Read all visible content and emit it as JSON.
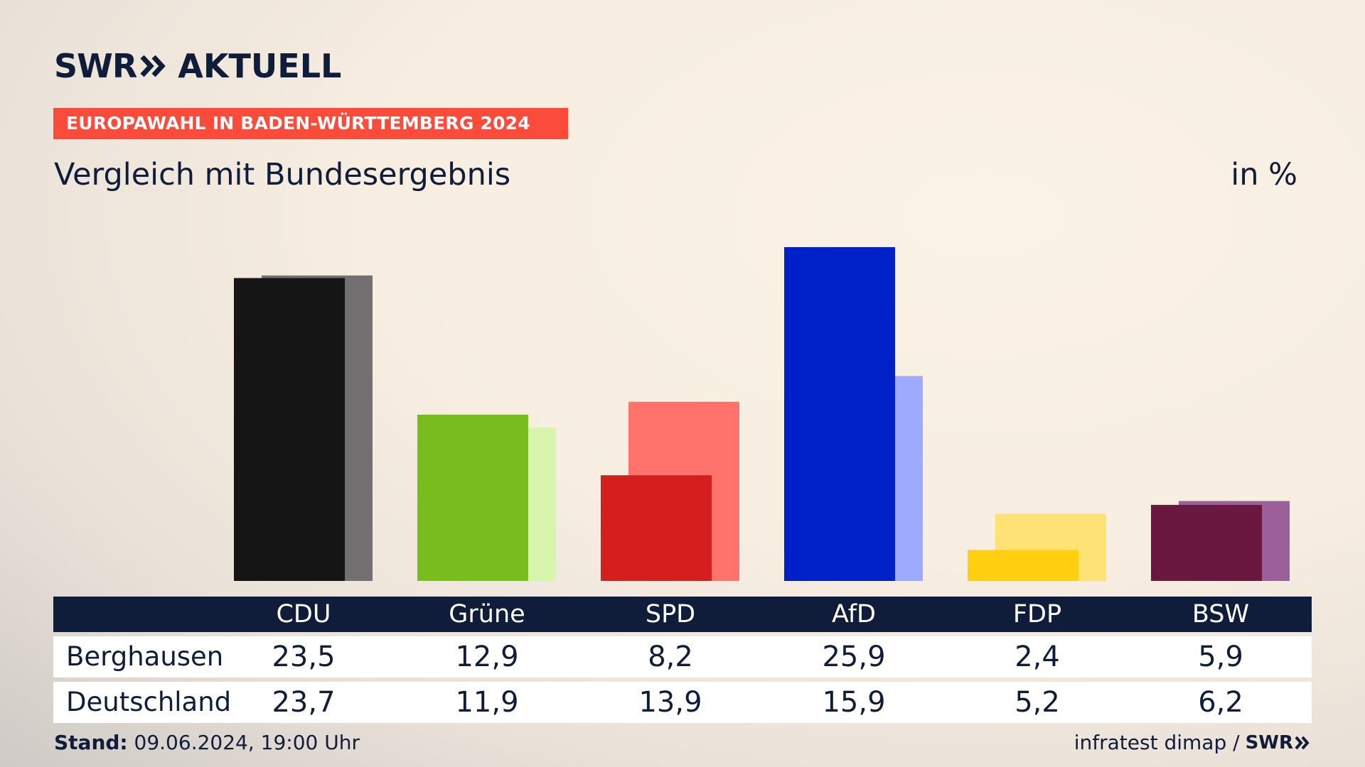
{
  "header": {
    "logo_swr": "SWR",
    "logo_aktuell": "AKTUELL",
    "banner": "EUROPAWAHL IN BADEN-WÜRTTEMBERG 2024",
    "subtitle": "Vergleich mit Bundesergebnis",
    "unit": "in %"
  },
  "chart_data": {
    "type": "bar",
    "categories": [
      "CDU",
      "Grüne",
      "SPD",
      "AfD",
      "FDP",
      "BSW"
    ],
    "series": [
      {
        "name": "Berghausen",
        "values": [
          23.5,
          12.9,
          8.2,
          25.9,
          2.4,
          5.9
        ]
      },
      {
        "name": "Deutschland",
        "values": [
          23.7,
          11.9,
          13.9,
          15.9,
          5.2,
          6.2
        ]
      }
    ],
    "values_text": {
      "Berghausen": [
        "23,5",
        "12,9",
        "8,2",
        "25,9",
        "2,4",
        "5,9"
      ],
      "Deutschland": [
        "23,7",
        "11,9",
        "13,9",
        "15,9",
        "5,2",
        "6,2"
      ]
    },
    "colors_primary": [
      "#151515",
      "#78bc1e",
      "#d51f1f",
      "#0020c8",
      "#ffcf10",
      "#6b1840"
    ],
    "colors_secondary": [
      "#727070",
      "#d8f5ad",
      "#ff736c",
      "#9eaafd",
      "#ffe276",
      "#9b5f99"
    ],
    "ylim": [
      0,
      27
    ],
    "grid": false,
    "legend": "table-below"
  },
  "footer": {
    "stand_label": "Stand:",
    "stand_value": "09.06.2024, 19:00 Uhr",
    "source": "infratest dimap /",
    "source_logo": "SWR"
  }
}
